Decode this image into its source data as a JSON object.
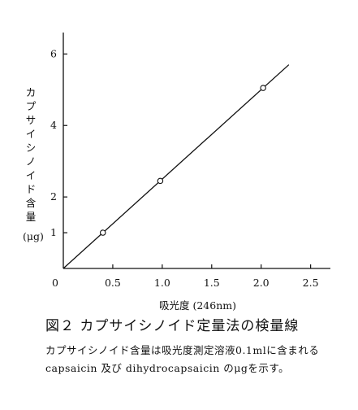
{
  "chart_data": {
    "type": "scatter",
    "title": "",
    "xlabel": "吸光度 (246nm)",
    "ylabel": "カプサイシノイド含量",
    "yunit": "(μg)",
    "xlim": [
      0,
      2.7
    ],
    "ylim": [
      0,
      6.6
    ],
    "xticks": [
      "0",
      "0.5",
      "1.0",
      "1.5",
      "2.0",
      "2.5"
    ],
    "yticks": [
      "1",
      "2",
      "4",
      "6"
    ],
    "ytick_values": [
      1,
      2,
      4,
      6
    ],
    "xtick_values": [
      0,
      0.5,
      1.0,
      1.5,
      2.0,
      2.5
    ],
    "points": [
      {
        "x": 0.4,
        "y": 1.0
      },
      {
        "x": 0.98,
        "y": 2.45
      },
      {
        "x": 2.02,
        "y": 5.05
      }
    ],
    "fit_line": {
      "x": [
        0,
        2.28
      ],
      "y": [
        0,
        5.7
      ]
    },
    "grid": false,
    "marker": "open-circle"
  },
  "caption": {
    "figure_title": "図２ カプサイシノイド定量法の検量線",
    "description": "カプサイシノイド含量は吸光度測定溶液0.1mlに含まれる capsaicin 及び dihydrocapsaicin のμgを示す。"
  }
}
